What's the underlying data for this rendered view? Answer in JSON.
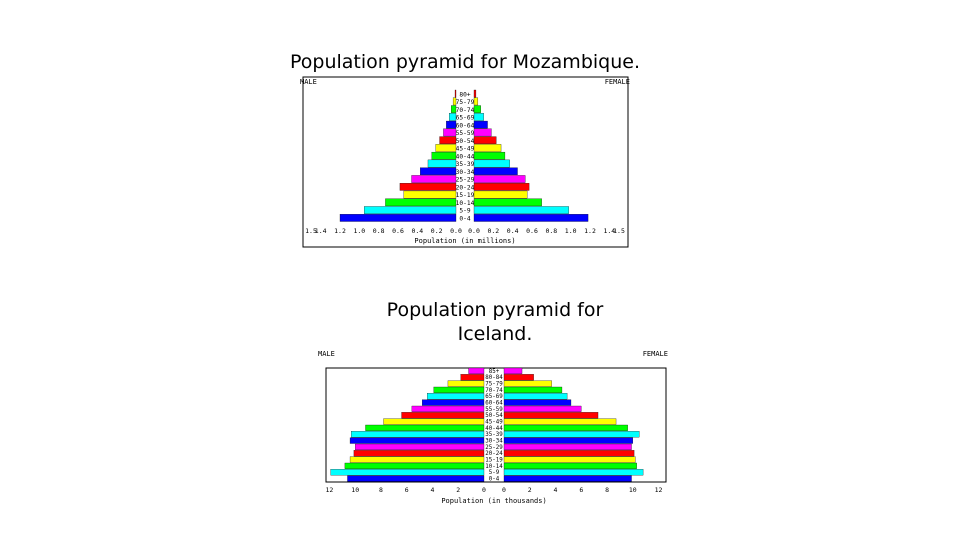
{
  "slide": {
    "title1": "Population pyramid for Mozambique.",
    "title2": "Population pyramid for Iceland."
  },
  "chart_data": [
    {
      "type": "bar",
      "orientation": "horizontal-pyramid",
      "title": "Population pyramid for Mozambique.",
      "left_label": "MALE",
      "right_label": "FEMALE",
      "xlabel": "Population (in millions)",
      "x_ticks_left": [
        "1.5",
        "1.4",
        "1.2",
        "1.0",
        "0.8",
        "0.6",
        "0.4",
        "0.2",
        "0.0"
      ],
      "x_ticks_right": [
        "0.0",
        "0.2",
        "0.4",
        "0.6",
        "0.8",
        "1.0",
        "1.2",
        "1.4",
        "1.5"
      ],
      "xlim": [
        0,
        1.5
      ],
      "categories": [
        "80+",
        "75-79",
        "70-74",
        "65-69",
        "60-64",
        "55-59",
        "50-54",
        "45-49",
        "40-44",
        "35-39",
        "30-34",
        "25-29",
        "20-24",
        "15-19",
        "10-14",
        "5-9",
        "0-4"
      ],
      "male": [
        0.01,
        0.03,
        0.05,
        0.07,
        0.1,
        0.13,
        0.17,
        0.21,
        0.25,
        0.29,
        0.37,
        0.46,
        0.58,
        0.54,
        0.73,
        0.95,
        1.2
      ],
      "female": [
        0.02,
        0.04,
        0.07,
        0.1,
        0.14,
        0.18,
        0.23,
        0.28,
        0.32,
        0.37,
        0.45,
        0.53,
        0.57,
        0.55,
        0.7,
        0.98,
        1.18
      ],
      "colors": [
        "#ff0000",
        "#ffff00",
        "#00ff00",
        "#00ffff",
        "#0000ff",
        "#ff00ff",
        "#ff0000",
        "#ffff00",
        "#00ff00",
        "#00ffff",
        "#0000ff",
        "#ff00ff",
        "#ff0000",
        "#ffff00",
        "#00ff00",
        "#00ffff",
        "#0000ff"
      ]
    },
    {
      "type": "bar",
      "orientation": "horizontal-pyramid",
      "title": "Population pyramid for Iceland.",
      "left_label": "MALE",
      "right_label": "FEMALE",
      "xlabel": "Population (in thousands)",
      "x_ticks_left": [
        "12",
        "10",
        "8",
        "6",
        "4",
        "2",
        "0"
      ],
      "x_ticks_right": [
        "0",
        "2",
        "4",
        "6",
        "8",
        "10",
        "12"
      ],
      "xlim": [
        0,
        12.5
      ],
      "categories": [
        "85+",
        "80-84",
        "75-79",
        "70-74",
        "65-69",
        "60-64",
        "55-59",
        "50-54",
        "45-49",
        "40-44",
        "35-39",
        "30-34",
        "25-29",
        "20-24",
        "15-19",
        "10-14",
        "5-9",
        "0-4"
      ],
      "male": [
        1.2,
        1.8,
        2.8,
        3.9,
        4.4,
        4.8,
        5.6,
        6.4,
        7.8,
        9.2,
        10.3,
        10.4,
        10.0,
        10.1,
        10.4,
        10.8,
        11.9,
        10.6
      ],
      "female": [
        1.4,
        2.3,
        3.7,
        4.5,
        4.9,
        5.2,
        6.0,
        7.3,
        8.7,
        9.6,
        10.5,
        10.0,
        9.9,
        10.1,
        10.2,
        10.3,
        10.8,
        9.9
      ],
      "colors": [
        "#ff00ff",
        "#ff0000",
        "#ffff00",
        "#00ff00",
        "#00ffff",
        "#0000ff",
        "#ff00ff",
        "#ff0000",
        "#ffff00",
        "#00ff00",
        "#00ffff",
        "#0000ff",
        "#ff00ff",
        "#ff0000",
        "#ffff00",
        "#00ff00",
        "#00ffff",
        "#0000ff"
      ]
    }
  ]
}
